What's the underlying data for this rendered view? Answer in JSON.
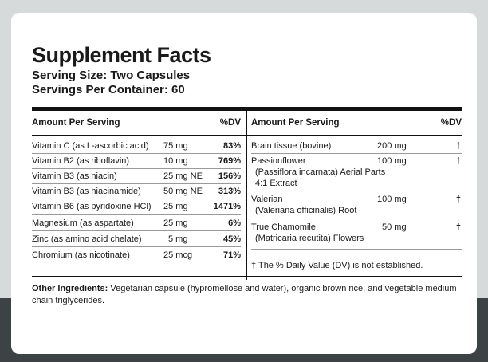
{
  "label": {
    "title": "Supplement Facts",
    "serving_size": "Serving Size: Two Capsules",
    "servings_per_container": "Servings Per Container: 60"
  },
  "left_table": {
    "header_amount": "Amount Per Serving",
    "header_dv": "%DV",
    "rows": [
      {
        "name": "Vitamin C (as L-ascorbic acid)",
        "amount": "75 mg",
        "dv": "83%"
      },
      {
        "name": "Vitamin B2 (as riboflavin)",
        "amount": "10 mg",
        "dv": "769%"
      },
      {
        "name": "Vitamin B3 (as niacin)",
        "amount": "25 mg NE",
        "dv": "156%"
      },
      {
        "name": "Vitamin B3 (as niacinamide)",
        "amount": "50 mg NE",
        "dv": "313%"
      },
      {
        "name": "Vitamin B6 (as pyridoxine HCl)",
        "amount": "25 mg",
        "dv": "1471%"
      },
      {
        "name": "Magnesium (as aspartate)",
        "amount": "25 mg",
        "dv": "6%"
      },
      {
        "name": "Zinc (as amino acid chelate)",
        "amount": "5 mg",
        "dv": "45%"
      },
      {
        "name": "Chromium (as nicotinate)",
        "amount": "25 mcg",
        "dv": "71%"
      }
    ]
  },
  "right_table": {
    "header_amount": "Amount Per Serving",
    "header_dv": "%DV",
    "rows": [
      {
        "name": "Brain tissue (bovine)",
        "sub": "",
        "sub2": "",
        "amount": "200 mg",
        "dv": "†"
      },
      {
        "name": "Passionflower",
        "sub": "(Passiflora incarnata) Aerial Parts",
        "sub2": "4:1 Extract",
        "amount": "100 mg",
        "dv": "†"
      },
      {
        "name": "Valerian",
        "sub": "(Valeriana officinalis) Root",
        "sub2": "",
        "amount": "100 mg",
        "dv": "†"
      },
      {
        "name": "True Chamomile",
        "sub": "(Matricaria recutita) Flowers",
        "sub2": "",
        "amount": "50 mg",
        "dv": "†"
      }
    ],
    "footnote": "† The % Daily Value (DV) is not established."
  },
  "other_ingredients": {
    "label": "Other Ingredients:",
    "text": " Vegetarian capsule (hypromellose and water), organic brown rice, and vegetable medium chain triglycerides."
  }
}
